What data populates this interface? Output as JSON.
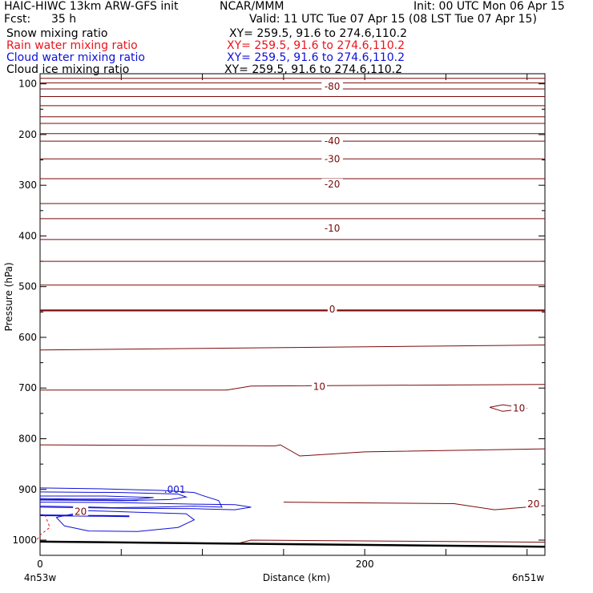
{
  "header": {
    "model": "HAIC-HIWC 13km ARW-GFS init",
    "center": "NCAR/MMM",
    "init": "Init: 00 UTC Mon 06 Apr 15",
    "fcst_label": "Fcst:",
    "fcst_value": "35 h",
    "valid": "Valid: 11 UTC Tue 07 Apr 15 (08 LST Tue 07 Apr 15)"
  },
  "fields": [
    {
      "name": "Snow mixing ratio",
      "xy": "XY= 259.5, 91.6 to 274.6,110.2",
      "color": "#000000"
    },
    {
      "name": "Rain water mixing ratio",
      "xy": "XY= 259.5, 91.6 to 274.6,110.2",
      "color": "#e8141c"
    },
    {
      "name": "Cloud water mixing ratio",
      "xy": "XY= 259.5, 91.6 to 274.6,110.2",
      "color": "#1010d8"
    },
    {
      "name": "Cloud ice mixing ratio",
      "xy": "XY= 259.5, 91.6 to 274.6,110.2",
      "color": "#000000"
    }
  ],
  "chart_data": {
    "type": "line",
    "xlabel": "Distance (km)",
    "ylabel": "Pressure (hPa)",
    "xlim": [
      0,
      311
    ],
    "ylim": [
      1030,
      80
    ],
    "x_ticks": [
      0,
      200
    ],
    "y_ticks": [
      100,
      200,
      300,
      400,
      500,
      600,
      700,
      800,
      900,
      1000
    ],
    "endpoints": {
      "left": "4n53w",
      "right": "6n51w"
    },
    "colors": {
      "temperature": "#7a0a0a",
      "cloud_water": "#1010d8",
      "rain": "#e8141c",
      "surface": "#000000"
    },
    "contour_labels": [
      {
        "text": "-80",
        "x": 180,
        "p": 105
      },
      {
        "text": "-40",
        "x": 180,
        "p": 213
      },
      {
        "text": "-30",
        "x": 180,
        "p": 248
      },
      {
        "text": "-20",
        "x": 180,
        "p": 298
      },
      {
        "text": "-10",
        "x": 180,
        "p": 385
      },
      {
        "text": "0",
        "x": 180,
        "p": 545
      },
      {
        "text": "10",
        "x": 172,
        "p": 697
      },
      {
        "text": "10",
        "x": 295,
        "p": 740
      },
      {
        "text": "20",
        "x": 304,
        "p": 929
      },
      {
        "text": "20",
        "x": 25,
        "p": 944
      }
    ],
    "cloud_label": {
      "text": ".001",
      "x": 83,
      "p": 907
    },
    "temperature_contours": [
      {
        "x": [
          0,
          311
        ],
        "p": [
          89,
          89
        ]
      },
      {
        "x": [
          0,
          311
        ],
        "p": [
          98,
          98
        ]
      },
      {
        "x": [
          0,
          311
        ],
        "p": [
          110,
          110
        ]
      },
      {
        "x": [
          0,
          311
        ],
        "p": [
          125,
          125
        ]
      },
      {
        "x": [
          0,
          311
        ],
        "p": [
          143,
          143
        ]
      },
      {
        "x": [
          0,
          311
        ],
        "p": [
          165,
          165
        ]
      },
      {
        "x": [
          0,
          311
        ],
        "p": [
          178,
          178
        ]
      },
      {
        "x": [
          0,
          311
        ],
        "p": [
          198,
          198
        ]
      },
      {
        "x": [
          0,
          311
        ],
        "p": [
          213,
          213
        ]
      },
      {
        "x": [
          0,
          311
        ],
        "p": [
          248,
          248
        ]
      },
      {
        "x": [
          0,
          311
        ],
        "p": [
          287,
          287
        ]
      },
      {
        "x": [
          0,
          311
        ],
        "p": [
          336,
          336
        ]
      },
      {
        "x": [
          0,
          311
        ],
        "p": [
          366,
          366
        ]
      },
      {
        "x": [
          0,
          311
        ],
        "p": [
          407,
          407
        ]
      },
      {
        "x": [
          0,
          311
        ],
        "p": [
          450,
          450
        ]
      },
      {
        "x": [
          0,
          311
        ],
        "p": [
          497,
          497
        ]
      },
      {
        "x": [
          0,
          311
        ],
        "p": [
          547,
          547
        ]
      },
      {
        "x": [
          0,
          311
        ],
        "p": [
          625,
          615
        ]
      },
      {
        "x": [
          0,
          115,
          130,
          311
        ],
        "p": [
          704,
          704,
          696,
          693
        ]
      },
      {
        "x": [
          0,
          145,
          148,
          160,
          200,
          311
        ],
        "p": [
          812,
          814,
          812,
          834,
          826,
          820
        ]
      },
      {
        "x": [
          150,
          180,
          255,
          280,
          311
        ],
        "p": [
          925,
          926,
          928,
          940,
          932
        ]
      },
      {
        "x": [
          120,
          130,
          311
        ],
        "p": [
          1008,
          1000,
          1004
        ]
      }
    ],
    "surface": {
      "x": [
        0,
        311
      ],
      "p": [
        1003,
        1013
      ]
    },
    "small_contour": {
      "x": [
        277,
        285,
        300,
        285,
        277
      ],
      "p": [
        738,
        733,
        740,
        746,
        738
      ]
    }
  }
}
